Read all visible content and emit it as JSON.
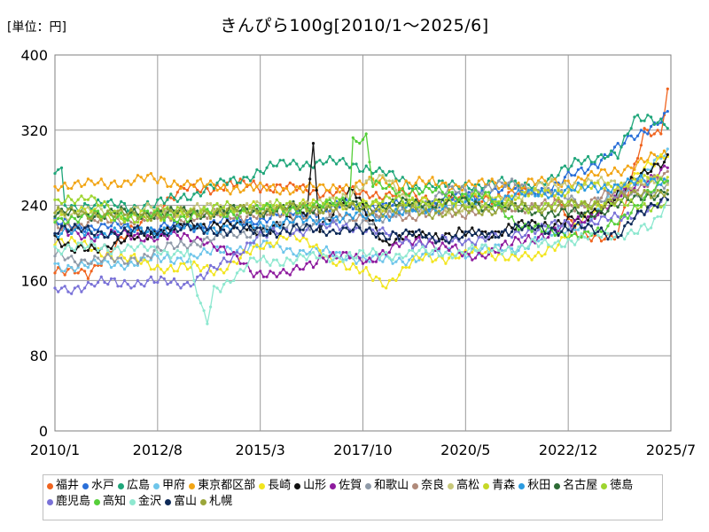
{
  "header": {
    "unit_label": "[単位：円]"
  },
  "chart_data": {
    "type": "line",
    "title": "きんぴら100g[2010/1～2025/6]",
    "xlabel": "",
    "ylabel": "",
    "ylim": [
      0,
      400
    ],
    "y_ticks": [
      0,
      80,
      160,
      240,
      320,
      400
    ],
    "x_ticks": [
      {
        "label": "2010/1",
        "t": 0
      },
      {
        "label": "2012/8",
        "t": 31
      },
      {
        "label": "2015/3",
        "t": 62
      },
      {
        "label": "2017/10",
        "t": 93
      },
      {
        "label": "2020/5",
        "t": 124
      },
      {
        "label": "2022/12",
        "t": 155
      },
      {
        "label": "2025/7",
        "t": 186
      }
    ],
    "x_range": [
      0,
      186
    ],
    "grid": true,
    "legend_position": "bottom",
    "note": "Monthly series, t = months since 2010/1; values are approximate readings at anchor months, linearly interpolated.",
    "series": [
      {
        "name": "福井",
        "color": "#f0631e",
        "anchors": [
          [
            0,
            168
          ],
          [
            10,
            168
          ],
          [
            11,
            172
          ],
          [
            30,
            235
          ],
          [
            40,
            258
          ],
          [
            60,
            262
          ],
          [
            80,
            255
          ],
          [
            100,
            252
          ],
          [
            120,
            245
          ],
          [
            140,
            252
          ],
          [
            150,
            258
          ],
          [
            158,
            205
          ],
          [
            170,
            210
          ],
          [
            178,
            318
          ],
          [
            183,
            320
          ],
          [
            185,
            365
          ],
          [
            186,
            380
          ]
        ]
      },
      {
        "name": "水戸",
        "color": "#2a6fd8",
        "anchors": [
          [
            0,
            220
          ],
          [
            30,
            215
          ],
          [
            60,
            225
          ],
          [
            90,
            240
          ],
          [
            110,
            238
          ],
          [
            130,
            255
          ],
          [
            150,
            258
          ],
          [
            170,
            300
          ],
          [
            186,
            340
          ]
        ]
      },
      {
        "name": "広島",
        "color": "#1fa67a",
        "anchors": [
          [
            0,
            275
          ],
          [
            2,
            275
          ],
          [
            3,
            240
          ],
          [
            30,
            240
          ],
          [
            50,
            262
          ],
          [
            70,
            285
          ],
          [
            90,
            285
          ],
          [
            110,
            260
          ],
          [
            130,
            262
          ],
          [
            150,
            265
          ],
          [
            158,
            290
          ],
          [
            170,
            292
          ],
          [
            175,
            335
          ],
          [
            179,
            335
          ],
          [
            186,
            320
          ]
        ]
      },
      {
        "name": "甲府",
        "color": "#6ec5ea",
        "anchors": [
          [
            0,
            175
          ],
          [
            20,
            178
          ],
          [
            40,
            185
          ],
          [
            60,
            198
          ],
          [
            80,
            190
          ],
          [
            100,
            180
          ],
          [
            120,
            190
          ],
          [
            140,
            195
          ],
          [
            160,
            222
          ],
          [
            186,
            298
          ]
        ]
      },
      {
        "name": "東京都区部",
        "color": "#f2a515",
        "anchors": [
          [
            0,
            262
          ],
          [
            10,
            262
          ],
          [
            30,
            268
          ],
          [
            40,
            262
          ],
          [
            60,
            258
          ],
          [
            80,
            258
          ],
          [
            100,
            265
          ],
          [
            120,
            262
          ],
          [
            140,
            262
          ],
          [
            160,
            268
          ],
          [
            186,
            295
          ]
        ]
      },
      {
        "name": "長崎",
        "color": "#f2e51f",
        "anchors": [
          [
            0,
            205
          ],
          [
            30,
            175
          ],
          [
            50,
            172
          ],
          [
            70,
            210
          ],
          [
            90,
            172
          ],
          [
            100,
            158
          ],
          [
            110,
            183
          ],
          [
            130,
            190
          ],
          [
            145,
            182
          ],
          [
            160,
            225
          ],
          [
            186,
            300
          ]
        ]
      },
      {
        "name": "山形",
        "color": "#111111",
        "anchors": [
          [
            0,
            205
          ],
          [
            5,
            190
          ],
          [
            10,
            195
          ],
          [
            20,
            200
          ],
          [
            30,
            212
          ],
          [
            50,
            222
          ],
          [
            60,
            212
          ],
          [
            76,
            230
          ],
          [
            78,
            303
          ],
          [
            80,
            218
          ],
          [
            90,
            255
          ],
          [
            100,
            200
          ],
          [
            110,
            208
          ],
          [
            130,
            210
          ],
          [
            145,
            220
          ],
          [
            160,
            225
          ],
          [
            186,
            295
          ]
        ]
      },
      {
        "name": "佐賀",
        "color": "#8e1b9e",
        "anchors": [
          [
            0,
            210
          ],
          [
            20,
            208
          ],
          [
            45,
            205
          ],
          [
            60,
            170
          ],
          [
            70,
            165
          ],
          [
            80,
            185
          ],
          [
            95,
            183
          ],
          [
            110,
            205
          ],
          [
            125,
            185
          ],
          [
            140,
            200
          ],
          [
            160,
            225
          ],
          [
            186,
            285
          ]
        ]
      },
      {
        "name": "和歌山",
        "color": "#8f9aa8",
        "anchors": [
          [
            0,
            185
          ],
          [
            20,
            180
          ],
          [
            40,
            200
          ],
          [
            60,
            212
          ],
          [
            80,
            222
          ],
          [
            100,
            225
          ],
          [
            120,
            255
          ],
          [
            140,
            262
          ],
          [
            160,
            242
          ],
          [
            186,
            262
          ]
        ]
      },
      {
        "name": "奈良",
        "color": "#b08a7a",
        "anchors": [
          [
            0,
            218
          ],
          [
            20,
            225
          ],
          [
            40,
            228
          ],
          [
            60,
            230
          ],
          [
            80,
            232
          ],
          [
            100,
            228
          ],
          [
            120,
            232
          ],
          [
            140,
            238
          ],
          [
            160,
            242
          ],
          [
            186,
            272
          ]
        ]
      },
      {
        "name": "高松",
        "color": "#c8c87a",
        "anchors": [
          [
            0,
            230
          ],
          [
            20,
            235
          ],
          [
            40,
            235
          ],
          [
            60,
            238
          ],
          [
            80,
            240
          ],
          [
            100,
            270
          ],
          [
            110,
            235
          ],
          [
            130,
            240
          ],
          [
            150,
            262
          ],
          [
            186,
            265
          ]
        ]
      },
      {
        "name": "青森",
        "color": "#c6d827",
        "anchors": [
          [
            0,
            235
          ],
          [
            20,
            228
          ],
          [
            40,
            230
          ],
          [
            60,
            238
          ],
          [
            80,
            240
          ],
          [
            100,
            240
          ],
          [
            120,
            245
          ],
          [
            140,
            250
          ],
          [
            160,
            258
          ],
          [
            186,
            270
          ]
        ]
      },
      {
        "name": "秋田",
        "color": "#2b9be0",
        "anchors": [
          [
            0,
            210
          ],
          [
            20,
            212
          ],
          [
            40,
            215
          ],
          [
            60,
            218
          ],
          [
            80,
            225
          ],
          [
            100,
            230
          ],
          [
            120,
            240
          ],
          [
            140,
            250
          ],
          [
            160,
            258
          ],
          [
            186,
            268
          ]
        ]
      },
      {
        "name": "名古屋",
        "color": "#2d6b35",
        "anchors": [
          [
            0,
            230
          ],
          [
            20,
            232
          ],
          [
            40,
            232
          ],
          [
            60,
            235
          ],
          [
            80,
            238
          ],
          [
            100,
            240
          ],
          [
            120,
            245
          ],
          [
            140,
            235
          ],
          [
            160,
            230
          ],
          [
            186,
            258
          ]
        ]
      },
      {
        "name": "徳島",
        "color": "#9ed52f",
        "anchors": [
          [
            0,
            240
          ],
          [
            10,
            252
          ],
          [
            20,
            225
          ],
          [
            40,
            235
          ],
          [
            60,
            238
          ],
          [
            80,
            240
          ],
          [
            100,
            245
          ],
          [
            120,
            242
          ],
          [
            140,
            238
          ],
          [
            160,
            242
          ],
          [
            186,
            240
          ]
        ]
      },
      {
        "name": "鹿児島",
        "color": "#7a72d8",
        "anchors": [
          [
            0,
            150
          ],
          [
            10,
            155
          ],
          [
            20,
            158
          ],
          [
            40,
            158
          ],
          [
            45,
            165
          ],
          [
            50,
            175
          ],
          [
            60,
            205
          ],
          [
            75,
            215
          ],
          [
            90,
            218
          ],
          [
            110,
            200
          ],
          [
            130,
            205
          ],
          [
            150,
            218
          ],
          [
            170,
            225
          ],
          [
            186,
            245
          ]
        ]
      },
      {
        "name": "高知",
        "color": "#56cf3a",
        "anchors": [
          [
            0,
            225
          ],
          [
            20,
            230
          ],
          [
            40,
            228
          ],
          [
            60,
            235
          ],
          [
            80,
            238
          ],
          [
            89,
            250
          ],
          [
            90,
            310
          ],
          [
            94,
            310
          ],
          [
            96,
            260
          ],
          [
            110,
            255
          ],
          [
            130,
            250
          ],
          [
            140,
            220
          ],
          [
            150,
            210
          ],
          [
            165,
            210
          ],
          [
            186,
            270
          ]
        ]
      },
      {
        "name": "金沢",
        "color": "#8ee8d0",
        "anchors": [
          [
            0,
            195
          ],
          [
            20,
            195
          ],
          [
            40,
            190
          ],
          [
            44,
            130
          ],
          [
            46,
            115
          ],
          [
            48,
            150
          ],
          [
            60,
            180
          ],
          [
            80,
            185
          ],
          [
            100,
            188
          ],
          [
            120,
            190
          ],
          [
            140,
            195
          ],
          [
            160,
            205
          ],
          [
            180,
            215
          ],
          [
            186,
            250
          ]
        ]
      },
      {
        "name": "富山",
        "color": "#0e2a58",
        "anchors": [
          [
            0,
            215
          ],
          [
            20,
            210
          ],
          [
            40,
            215
          ],
          [
            60,
            212
          ],
          [
            80,
            215
          ],
          [
            100,
            210
          ],
          [
            120,
            205
          ],
          [
            140,
            215
          ],
          [
            160,
            215
          ],
          [
            170,
            210
          ],
          [
            186,
            255
          ]
        ]
      },
      {
        "name": "札幌",
        "color": "#9aa63a",
        "anchors": [
          [
            0,
            232
          ],
          [
            20,
            230
          ],
          [
            40,
            232
          ],
          [
            60,
            235
          ],
          [
            80,
            238
          ],
          [
            100,
            235
          ],
          [
            120,
            232
          ],
          [
            140,
            238
          ],
          [
            160,
            240
          ],
          [
            186,
            258
          ]
        ]
      }
    ]
  }
}
